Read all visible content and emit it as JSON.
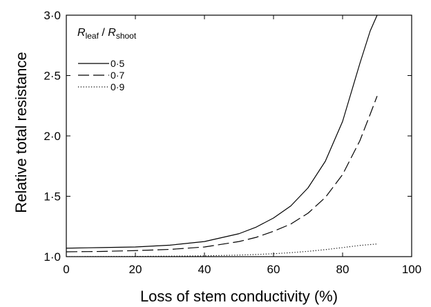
{
  "chart_data": {
    "type": "line",
    "xlabel": "Loss of stem conductivity (%)",
    "ylabel": "Relative total resistance",
    "xlim": [
      0,
      100
    ],
    "ylim": [
      1.0,
      3.0
    ],
    "x_ticks": [
      0,
      20,
      40,
      60,
      80,
      100
    ],
    "x_tick_labels": [
      "0",
      "20",
      "40",
      "60",
      "80",
      "100"
    ],
    "y_ticks": [
      1.0,
      1.5,
      2.0,
      2.5,
      3.0
    ],
    "y_tick_labels": [
      "1·0",
      "1·5",
      "2·0",
      "2·5",
      "3·0"
    ],
    "grid": false,
    "legend": {
      "placement": "top-left",
      "title_main1": "R",
      "title_sub1": "leaf",
      "title_sep": " / ",
      "title_main2": "R",
      "title_sub2": "shoot"
    },
    "x": [
      0,
      10,
      20,
      30,
      40,
      50,
      55,
      60,
      65,
      70,
      75,
      80,
      85,
      88,
      90
    ],
    "series": [
      {
        "name": "0·5",
        "dash": "solid",
        "values": [
          1.07,
          1.075,
          1.08,
          1.095,
          1.125,
          1.19,
          1.245,
          1.32,
          1.42,
          1.57,
          1.79,
          2.12,
          2.6,
          2.87,
          3.0
        ]
      },
      {
        "name": "0·7",
        "dash": "long-dash",
        "values": [
          1.04,
          1.043,
          1.05,
          1.06,
          1.08,
          1.125,
          1.16,
          1.21,
          1.27,
          1.36,
          1.49,
          1.68,
          1.96,
          2.18,
          2.33
        ]
      },
      {
        "name": "0·9",
        "dash": "dotted",
        "values": [
          1.0,
          1.001,
          1.002,
          1.004,
          1.007,
          1.013,
          1.018,
          1.024,
          1.033,
          1.044,
          1.058,
          1.075,
          1.093,
          1.1,
          1.105
        ]
      }
    ]
  }
}
